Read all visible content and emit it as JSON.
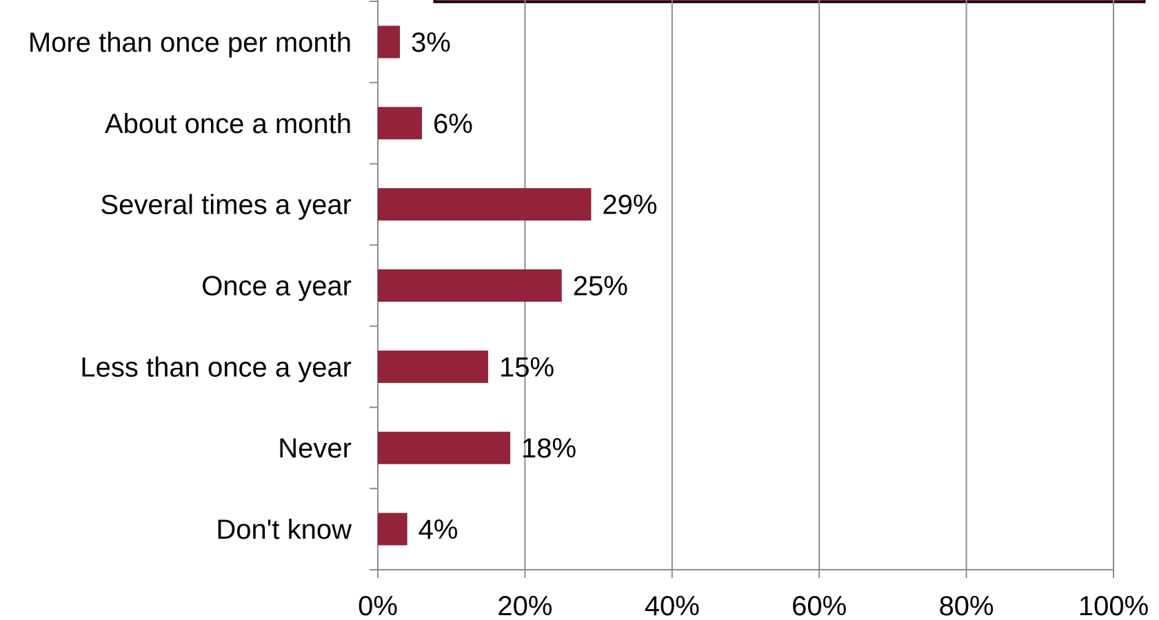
{
  "chart_data": {
    "type": "bar",
    "orientation": "horizontal",
    "categories": [
      "More than once per month",
      "About once a month",
      "Several times a year",
      "Once a year",
      "Less than once a year",
      "Never",
      "Don't know"
    ],
    "values": [
      3,
      6,
      29,
      25,
      15,
      18,
      4
    ],
    "data_labels": [
      "3%",
      "6%",
      "29%",
      "25%",
      "15%",
      "18%",
      "4%"
    ],
    "xlim": [
      0,
      100
    ],
    "xticks": [
      0,
      20,
      40,
      60,
      80,
      100
    ],
    "xtick_labels": [
      "0%",
      "20%",
      "40%",
      "60%",
      "80%",
      "100%"
    ],
    "grid": "vertical",
    "bar_color": "#93233A",
    "legend_box_color": "#93233A"
  }
}
